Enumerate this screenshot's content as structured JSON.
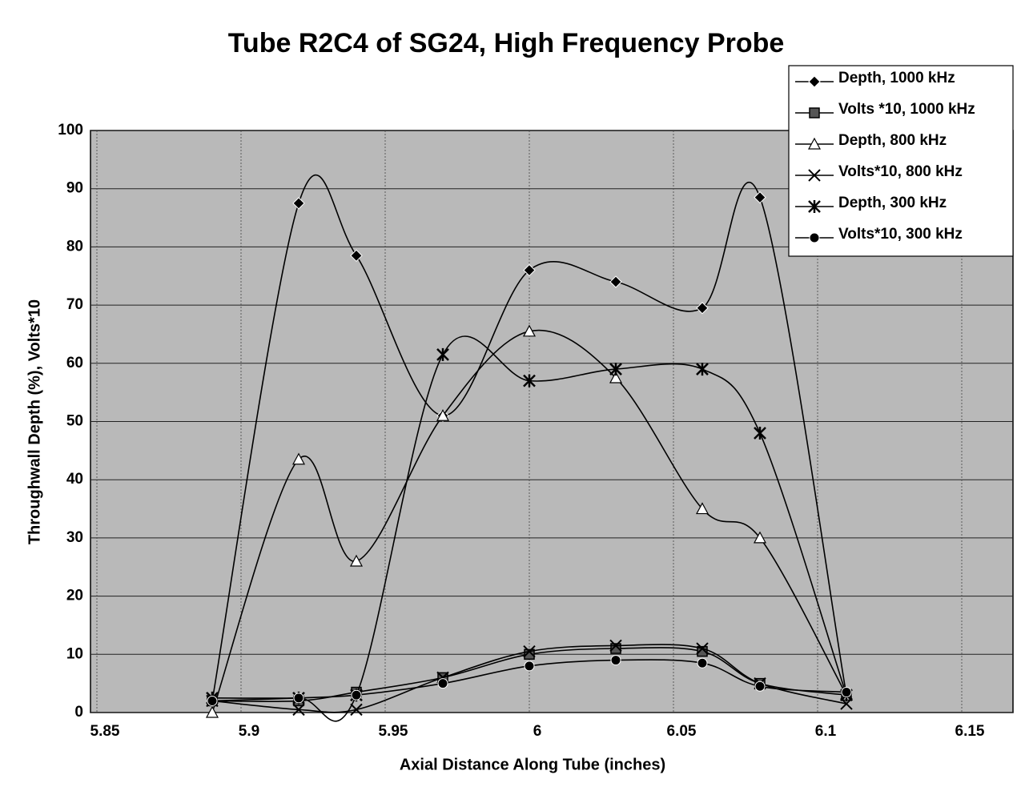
{
  "chart_data": {
    "type": "line",
    "title": "Tube R2C4 of SG24, High Frequency Probe",
    "x_label": "Axial Distance Along Tube (inches)",
    "y_label": "Throughwall Depth (%), Volts*10",
    "x": [
      5.89,
      5.92,
      5.94,
      5.97,
      6.0,
      6.03,
      6.06,
      6.08,
      6.11
    ],
    "series": [
      {
        "name": "Depth, 1000 kHz",
        "color": "#000000",
        "marker": "diamond",
        "values": [
          2,
          87.5,
          78.5,
          51,
          76,
          74,
          69.5,
          88.5,
          3
        ]
      },
      {
        "name": "Volts *10, 1000 kHz",
        "color": "#000000",
        "marker": "square",
        "values": [
          2,
          2,
          3.5,
          6,
          10,
          11,
          10.5,
          5,
          3
        ]
      },
      {
        "name": "Depth, 800 kHz",
        "color": "#000000",
        "marker": "triangle",
        "values": [
          0,
          43.5,
          26,
          51,
          65.5,
          57.5,
          35,
          30,
          3
        ]
      },
      {
        "name": "Volts*10, 800 kHz",
        "color": "#000000",
        "marker": "x",
        "values": [
          2,
          0.5,
          0.5,
          6,
          10.5,
          11.5,
          11,
          5,
          1.5
        ]
      },
      {
        "name": "Depth, 300 kHz",
        "color": "#000000",
        "marker": "star",
        "values": [
          2.5,
          2.5,
          3,
          61.5,
          57,
          59,
          59,
          48,
          3
        ]
      },
      {
        "name": "Volts*10, 300 kHz",
        "color": "#000000",
        "marker": "circle",
        "values": [
          2,
          2.5,
          3,
          5,
          8,
          9,
          8.5,
          4.5,
          3.5
        ]
      }
    ],
    "xlim": [
      5.85,
      6.15
    ],
    "xticks": [
      5.85,
      5.9,
      5.95,
      6,
      6.05,
      6.1,
      6.15
    ],
    "ylim": [
      0,
      100
    ],
    "yticks": [
      0,
      10,
      20,
      30,
      40,
      50,
      60,
      70,
      80,
      90,
      100
    ],
    "grid": true,
    "smooth": true,
    "legend": "top-right",
    "plot_background": "#b9b9b9"
  }
}
